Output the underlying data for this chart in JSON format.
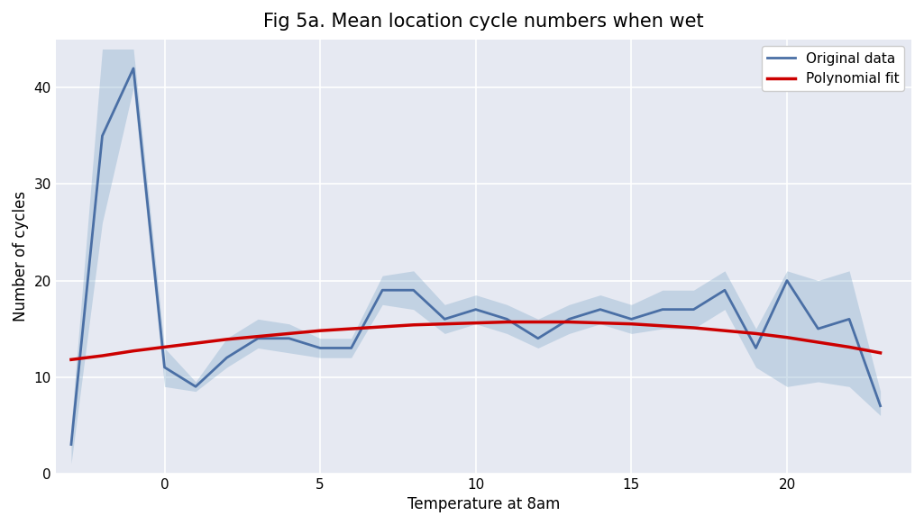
{
  "title": "Fig 5a. Mean location cycle numbers when wet",
  "xlabel": "Temperature at 8am",
  "ylabel": "Number of cycles",
  "x_data": [
    -3,
    -2,
    -1,
    0,
    1,
    2,
    3,
    4,
    5,
    6,
    7,
    8,
    9,
    10,
    11,
    12,
    13,
    14,
    15,
    16,
    17,
    18,
    19,
    20,
    21,
    22,
    23
  ],
  "y_mean": [
    3,
    35,
    42,
    11,
    9,
    12,
    14,
    14,
    13,
    13,
    19,
    19,
    16,
    17,
    16,
    14,
    16,
    17,
    16,
    17,
    17,
    19,
    13,
    20,
    15,
    16,
    7
  ],
  "y_lower": [
    1,
    26,
    40,
    9,
    8.5,
    11,
    13,
    12.5,
    12,
    12,
    17.5,
    17,
    14.5,
    15.5,
    14.5,
    13,
    14.5,
    15.5,
    14.5,
    15,
    15,
    17,
    11,
    9,
    9.5,
    9,
    6
  ],
  "y_upper": [
    5,
    44,
    44,
    13,
    9.5,
    14,
    16,
    15.5,
    14,
    14,
    20.5,
    21,
    17.5,
    18.5,
    17.5,
    16,
    17.5,
    18.5,
    17.5,
    19,
    19,
    21,
    15,
    21,
    20,
    21,
    8.5
  ],
  "poly_x": [
    -3,
    -2,
    -1,
    0,
    1,
    2,
    3,
    4,
    5,
    6,
    7,
    8,
    9,
    10,
    11,
    12,
    13,
    14,
    15,
    16,
    17,
    18,
    19,
    20,
    21,
    22,
    23
  ],
  "poly_y": [
    11.8,
    12.2,
    12.7,
    13.1,
    13.5,
    13.9,
    14.2,
    14.5,
    14.8,
    15.0,
    15.2,
    15.4,
    15.5,
    15.6,
    15.7,
    15.7,
    15.7,
    15.6,
    15.5,
    15.3,
    15.1,
    14.8,
    14.5,
    14.1,
    13.6,
    13.1,
    12.5
  ],
  "line_color": "#4a6fa5",
  "fill_color": "#7fa8c9",
  "poly_color": "#cc0000",
  "plot_bg_color": "#e6e9f2",
  "fig_bg_color": "#ffffff",
  "grid_color": "#ffffff",
  "title_fontsize": 15,
  "label_fontsize": 12,
  "tick_fontsize": 11,
  "xlim": [
    -3.5,
    24.0
  ],
  "ylim": [
    0,
    45
  ],
  "xticks": [
    0,
    5,
    10,
    15,
    20
  ],
  "yticks": [
    0,
    10,
    20,
    30,
    40
  ],
  "legend_labels": [
    "Original data",
    "Polynomial fit"
  ]
}
